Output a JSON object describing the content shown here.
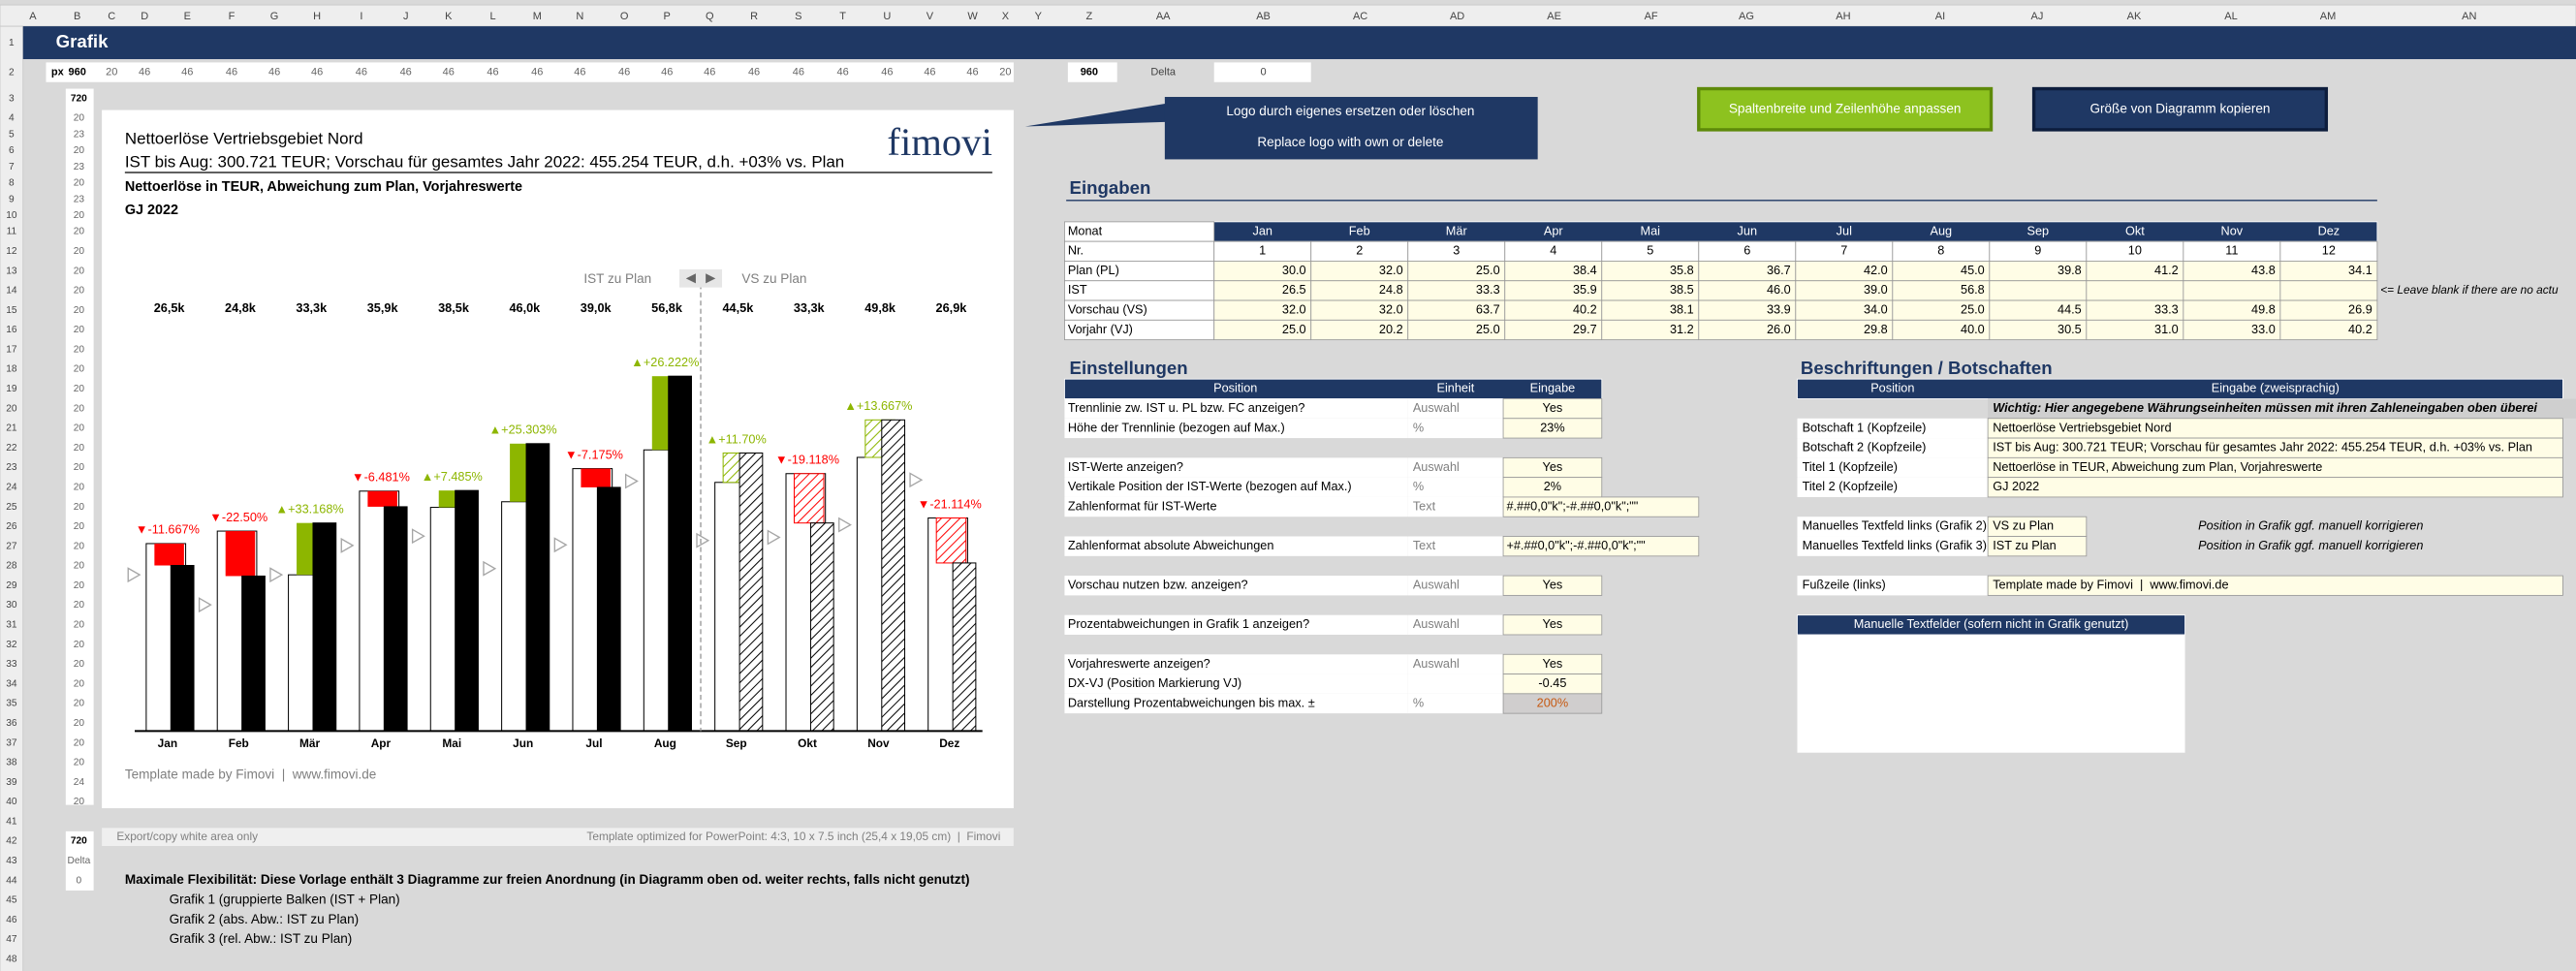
{
  "sheet": {
    "title": "Grafik",
    "columns": [
      "A",
      "B",
      "C",
      "D",
      "E",
      "F",
      "G",
      "H",
      "I",
      "J",
      "K",
      "L",
      "M",
      "N",
      "O",
      "P",
      "Q",
      "R",
      "S",
      "T",
      "U",
      "V",
      "W",
      "X",
      "Y",
      "Z",
      "AA",
      "AB",
      "AC",
      "AD",
      "AE",
      "AF",
      "AG",
      "AH",
      "AI",
      "AJ",
      "AK",
      "AL",
      "AM",
      "AN"
    ],
    "rows": [
      "1",
      "2",
      "3",
      "4",
      "5",
      "6",
      "7",
      "8",
      "9",
      "10",
      "11",
      "12",
      "13",
      "14",
      "15",
      "16",
      "17",
      "18",
      "19",
      "20",
      "21",
      "22",
      "23",
      "24",
      "25",
      "26",
      "27",
      "28",
      "29",
      "30",
      "31",
      "32",
      "33",
      "34",
      "35",
      "36",
      "37",
      "38",
      "39",
      "40",
      "41",
      "42",
      "43",
      "44",
      "45",
      "46",
      "47",
      "48"
    ],
    "row2_label": "px",
    "row2": [
      "960",
      "20",
      "46",
      "46",
      "46",
      "46",
      "46",
      "46",
      "46",
      "46",
      "46",
      "46",
      "46",
      "46",
      "46",
      "46",
      "46",
      "46",
      "46",
      "46",
      "46",
      "46",
      "20"
    ],
    "z2": "960",
    "aa2": "Delta",
    "ab2": "0",
    "col_b": [
      "720",
      "20",
      "23",
      "20",
      "23",
      "20",
      "23",
      "20",
      "20",
      "20",
      "20",
      "20",
      "20",
      "20",
      "20",
      "20",
      "20",
      "20",
      "20",
      "20",
      "20",
      "20",
      "20",
      "20",
      "20",
      "20",
      "20",
      "20",
      "20",
      "20",
      "20",
      "20",
      "20",
      "20",
      "20",
      "20",
      "24",
      "20"
    ],
    "col_b_lower": [
      "720",
      "Delta",
      "0"
    ]
  },
  "logo": "fimovi",
  "callout": [
    "Logo durch eigenes ersetzen oder löschen",
    "Replace logo with own or delete"
  ],
  "buttons": [
    "Spaltenbreite und Zeilenhöhe anpassen",
    "Größe von Diagramm kopieren"
  ],
  "chart_data": {
    "type": "bar",
    "title": "Nettoerlöse Vertriebsgebiet Nord",
    "subtitle": "IST bis Aug: 300.721 TEUR; Vorschau für gesamtes Jahr 2022: 455.254 TEUR, d.h. +03% vs. Plan",
    "title2": "Nettoerlöse in TEUR, Abweichung zum Plan, Vorjahreswerte",
    "title3": "GJ 2022",
    "segment_labels": [
      "IST zu Plan",
      "VS zu Plan"
    ],
    "categories": [
      "Jan",
      "Feb",
      "Mär",
      "Apr",
      "Mai",
      "Jun",
      "Jul",
      "Aug",
      "Sep",
      "Okt",
      "Nov",
      "Dez"
    ],
    "plan": [
      30.0,
      32.0,
      25.0,
      38.4,
      35.8,
      36.7,
      42.0,
      45.0,
      39.8,
      41.2,
      43.8,
      34.1
    ],
    "actual": [
      26.5,
      24.8,
      33.3,
      35.9,
      38.5,
      46.0,
      39.0,
      56.8,
      null,
      null,
      null,
      null
    ],
    "forecast": [
      null,
      null,
      null,
      null,
      null,
      null,
      null,
      null,
      44.5,
      33.3,
      49.8,
      26.9
    ],
    "prior_year": [
      25.0,
      20.2,
      25.0,
      29.7,
      31.2,
      26.0,
      29.8,
      40.0,
      30.5,
      31.0,
      33.0,
      40.2
    ],
    "value_labels": [
      "26,5k",
      "24,8k",
      "33,3k",
      "35,9k",
      "38,5k",
      "46,0k",
      "39,0k",
      "56,8k",
      "44,5k",
      "33,3k",
      "49,8k",
      "26,9k"
    ],
    "deviation_labels": [
      "▼-11.667%",
      "▼-22.50%",
      "▲+33.168%",
      "▼-6.481%",
      "▲+7.485%",
      "▲+25.303%",
      "▼-7.175%",
      "▲+26.222%",
      "▲+11.70%",
      "▼-19.118%",
      "▲+13.667%",
      "▼-21.114%"
    ],
    "colors": {
      "plan": "#ffffff",
      "actual": "#000000",
      "positive": "#8db600",
      "negative": "#ff0000",
      "prior_year": "#a6a6a6"
    },
    "footer": "Template made by Fimovi  |  www.fimovi.de"
  },
  "export_bar": {
    "left": "Export/copy white area only",
    "right": "Template optimized for PowerPoint: 4:3, 10 x 7.5 inch (25,4 x 19,05 cm)  |  Fimovi"
  },
  "notes": {
    "heading": "Maximale Flexibilität: Diese Vorlage enthält 3 Diagramme zur freien Anordnung (in Diagramm oben od. weiter rechts, falls nicht genutzt)",
    "items": [
      "Grafik 1 (gruppierte Balken (IST + Plan)",
      "Grafik 2 (abs. Abw.: IST zu Plan)",
      "Grafik 3 (rel. Abw.: IST zu Plan)"
    ]
  },
  "eingaben": {
    "title": "Eingaben",
    "header": [
      "Monat",
      "Jan",
      "Feb",
      "Mär",
      "Apr",
      "Mai",
      "Jun",
      "Jul",
      "Aug",
      "Sep",
      "Okt",
      "Nov",
      "Dez"
    ],
    "rows": [
      [
        "Nr.",
        "1",
        "2",
        "3",
        "4",
        "5",
        "6",
        "7",
        "8",
        "9",
        "10",
        "11",
        "12"
      ],
      [
        "Plan (PL)",
        "30.0",
        "32.0",
        "25.0",
        "38.4",
        "35.8",
        "36.7",
        "42.0",
        "45.0",
        "39.8",
        "41.2",
        "43.8",
        "34.1"
      ],
      [
        "IST",
        "26.5",
        "24.8",
        "33.3",
        "35.9",
        "38.5",
        "46.0",
        "39.0",
        "56.8",
        null,
        null,
        null,
        null
      ],
      [
        "Vorschau (VS)",
        "32.0",
        "32.0",
        "63.7",
        "40.2",
        "38.1",
        "33.9",
        "34.0",
        "25.0",
        "44.5",
        "33.3",
        "49.8",
        "26.9"
      ],
      [
        "Vorjahr (VJ)",
        "25.0",
        "20.2",
        "25.0",
        "29.7",
        "31.2",
        "26.0",
        "29.8",
        "40.0",
        "30.5",
        "31.0",
        "33.0",
        "40.2"
      ]
    ],
    "note": "<= Leave blank if there are no actu"
  },
  "einstellungen": {
    "title": "Einstellungen",
    "header": [
      "Position",
      "Einheit",
      "Eingabe"
    ],
    "rows": [
      [
        "Trennlinie zw. IST u. PL bzw. FC anzeigen?",
        "Auswahl",
        "Yes"
      ],
      [
        "Höhe der Trennlinie (bezogen auf Max.)",
        "%",
        "23%"
      ],
      [
        "IST-Werte anzeigen?",
        "Auswahl",
        "Yes"
      ],
      [
        "Vertikale Position der IST-Werte (bezogen auf Max.)",
        "%",
        "2%"
      ],
      [
        "Zahlenformat für IST-Werte",
        "Text",
        "#.##0,0\"k\";-#.##0,0\"k\";\"\""
      ],
      [
        "Zahlenformat absolute Abweichungen",
        "Text",
        "+#.##0,0\"k\";-#.##0,0\"k\";\"\""
      ],
      [
        "Vorschau nutzen bzw. anzeigen?",
        "Auswahl",
        "Yes"
      ],
      [
        "Prozentabweichungen in Grafik 1 anzeigen?",
        "Auswahl",
        "Yes"
      ],
      [
        "Vorjahreswerte anzeigen?",
        "Auswahl",
        "Yes"
      ],
      [
        "DX-VJ (Position Markierung VJ)",
        null,
        "-0.45"
      ],
      [
        "Darstellung Prozentabweichungen bis max. ±",
        "%",
        "200%"
      ]
    ]
  },
  "beschriftungen": {
    "title": "Beschriftungen / Botschaften",
    "header": [
      "Position",
      "Eingabe (zweisprachig)"
    ],
    "note": "Wichtig: Hier angegebene Währungseinheiten müssen mit ihren Zahleneingaben oben überei",
    "rows": [
      [
        "Botschaft 1 (Kopfzeile)",
        "Nettoerlöse Vertriebsgebiet Nord"
      ],
      [
        "Botschaft 2 (Kopfzeile)",
        "IST bis Aug: 300.721 TEUR; Vorschau für gesamtes Jahr 2022: 455.254 TEUR, d.h. +03% vs. Plan"
      ],
      [
        "Titel 1 (Kopfzeile)",
        "Nettoerlöse in TEUR, Abweichung zum Plan, Vorjahreswerte"
      ],
      [
        "Titel 2 (Kopfzeile)",
        "GJ 2022"
      ],
      [
        "Manuelles Textfeld links (Grafik 2)",
        "VS zu Plan",
        "Position in Grafik ggf. manuell korrigieren"
      ],
      [
        "Manuelles Textfeld links (Grafik 3)",
        "IST zu Plan",
        "Position in Grafik ggf. manuell korrigieren"
      ],
      [
        "Fußzeile (links)",
        "Template made by Fimovi  |  www.fimovi.de"
      ]
    ],
    "manual_title": "Manuelle Textfelder (sofern nicht in Grafik genutzt)"
  }
}
